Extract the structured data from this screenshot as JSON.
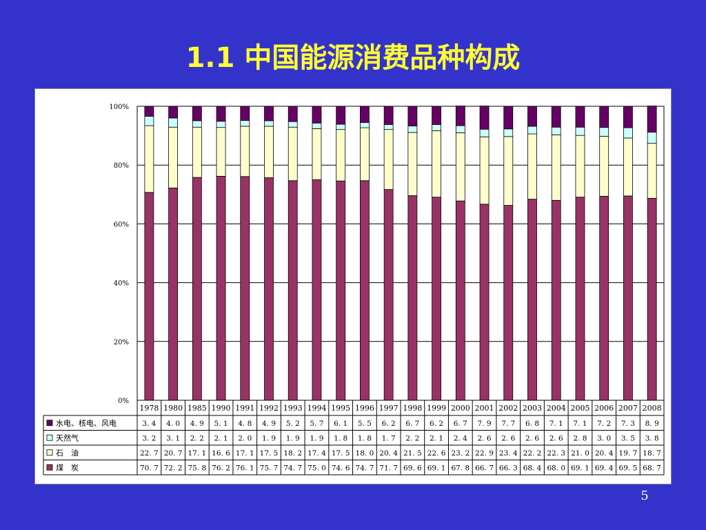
{
  "slide": {
    "title": "1.1 中国能源消费品种构成",
    "page_number": "5"
  },
  "colors": {
    "background": "#3333cc",
    "title": "#ffff33",
    "hydro_nuclear_wind": "#660066",
    "natural_gas": "#ccffff",
    "oil": "#ffffcc",
    "coal": "#993366"
  },
  "chart_data": {
    "type": "bar",
    "stacked": true,
    "percent": true,
    "title": "",
    "xlabel": "",
    "ylabel": "",
    "ylim": [
      0,
      100
    ],
    "y_ticks": [
      "0%",
      "20%",
      "40%",
      "60%",
      "80%",
      "100%"
    ],
    "grid": true,
    "legend": "table-left",
    "categories": [
      "1978",
      "1980",
      "1985",
      "1990",
      "1991",
      "1992",
      "1993",
      "1994",
      "1995",
      "1996",
      "1997",
      "1998",
      "1999",
      "2000",
      "2001",
      "2002",
      "2003",
      "2004",
      "2005",
      "2006",
      "2007",
      "2008"
    ],
    "series": [
      {
        "name": "水电、核电、风电",
        "values": [
          3.4,
          4.0,
          4.9,
          5.1,
          4.8,
          4.9,
          5.2,
          5.7,
          6.1,
          5.5,
          6.2,
          6.7,
          6.2,
          6.7,
          7.9,
          7.7,
          6.8,
          7.1,
          7.1,
          7.2,
          7.3,
          8.9
        ]
      },
      {
        "name": "天然气",
        "values": [
          3.2,
          3.1,
          2.2,
          2.1,
          2.0,
          1.9,
          1.9,
          1.9,
          1.8,
          1.8,
          1.7,
          2.2,
          2.1,
          2.4,
          2.6,
          2.6,
          2.6,
          2.6,
          2.8,
          3.0,
          3.5,
          3.8
        ]
      },
      {
        "name": "石　油",
        "values": [
          22.7,
          20.7,
          17.1,
          16.6,
          17.1,
          17.5,
          18.2,
          17.4,
          17.5,
          18.0,
          20.4,
          21.5,
          22.6,
          23.2,
          22.9,
          23.4,
          22.2,
          22.3,
          21.0,
          20.4,
          19.7,
          18.7
        ]
      },
      {
        "name": "煤　炭",
        "values": [
          70.7,
          72.2,
          75.8,
          76.2,
          76.1,
          75.7,
          74.7,
          75.0,
          74.6,
          74.7,
          71.7,
          69.6,
          69.1,
          67.8,
          66.7,
          66.3,
          68.4,
          68.0,
          69.1,
          69.4,
          69.5,
          68.7
        ]
      }
    ]
  }
}
